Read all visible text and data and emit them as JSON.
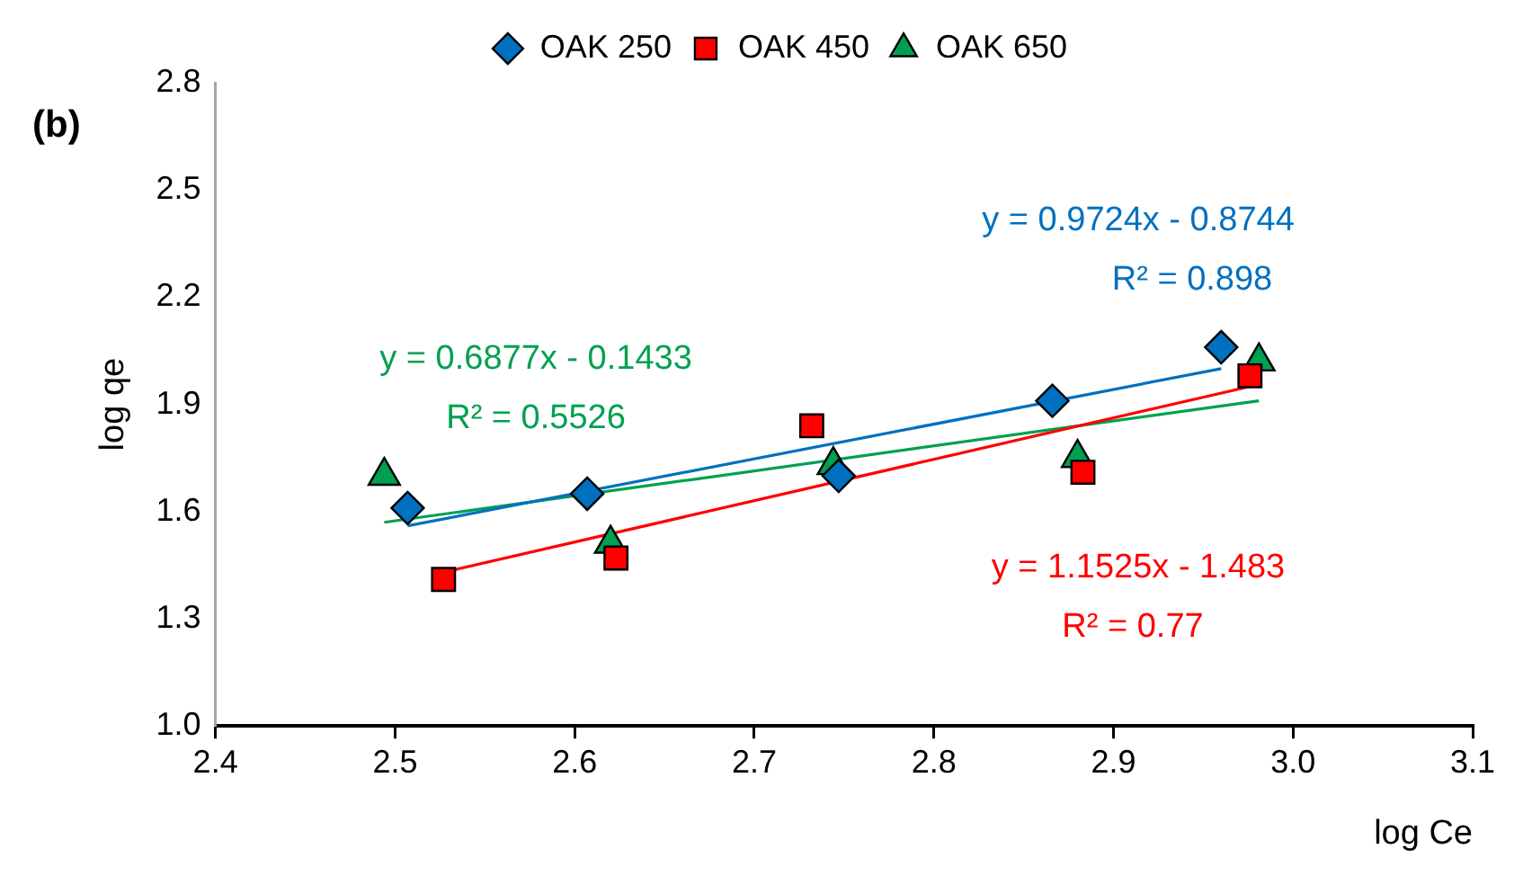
{
  "chart_data": {
    "type": "scatter",
    "title": "(b)",
    "xlabel": "log Ce",
    "ylabel": "log qe",
    "xlim": [
      2.4,
      3.1
    ],
    "xticks": [
      {
        "value": 2.4,
        "label": "2.4"
      },
      {
        "value": 2.5,
        "label": "2.5"
      },
      {
        "value": 2.6,
        "label": "2.6"
      },
      {
        "value": 2.7,
        "label": "2.7"
      },
      {
        "value": 2.8,
        "label": "2.8"
      },
      {
        "value": 2.9,
        "label": "2.9"
      },
      {
        "value": 3.0,
        "label": "3.0"
      },
      {
        "value": 3.1,
        "label": "3.1"
      }
    ],
    "ylim": [
      1.0,
      2.8
    ],
    "yticks": [
      {
        "value": 1.0,
        "label": "1.0"
      },
      {
        "value": 1.3,
        "label": "1.3"
      },
      {
        "value": 1.6,
        "label": "1.6"
      },
      {
        "value": 1.9,
        "label": "1.9"
      },
      {
        "value": 2.2,
        "label": "2.2"
      },
      {
        "value": 2.5,
        "label": "2.5"
      },
      {
        "value": 2.8,
        "label": "2.8"
      }
    ],
    "grid": false,
    "legend": "top",
    "series": [
      {
        "name": "OAK 250",
        "type": "scatter",
        "marker": "diamond",
        "color": "#0070c0",
        "x": [
          2.507,
          2.607,
          2.747,
          2.866,
          2.96
        ],
        "values": [
          1.61,
          1.65,
          1.7,
          1.91,
          2.06
        ]
      },
      {
        "name": "OAK 450",
        "type": "scatter",
        "marker": "square",
        "color": "#ff0000",
        "x": [
          2.527,
          2.623,
          2.732,
          2.883,
          2.976
        ],
        "values": [
          1.41,
          1.47,
          1.84,
          1.71,
          1.98
        ]
      },
      {
        "name": "OAK 650",
        "type": "scatter",
        "marker": "triangle",
        "color": "#00a050",
        "x": [
          2.494,
          2.62,
          2.744,
          2.88,
          2.981
        ],
        "values": [
          1.7,
          1.51,
          1.73,
          1.75,
          2.02
        ]
      },
      {
        "type": "line",
        "marker": "none",
        "color": "#0070c0",
        "x": [
          2.507,
          2.96
        ],
        "values": [
          1.56,
          2.0
        ]
      },
      {
        "type": "line",
        "marker": "none",
        "color": "#ff0000",
        "x": [
          2.527,
          2.976
        ],
        "values": [
          1.43,
          1.95
        ]
      },
      {
        "type": "line",
        "marker": "none",
        "color": "#00a050",
        "x": [
          2.494,
          2.981
        ],
        "values": [
          1.57,
          1.91
        ]
      }
    ],
    "annotations": [
      "y = 0.9724x - 0.8744",
      "R² = 0.898",
      "y = 1.1525x - 1.483",
      "R² = 0.77",
      "y = 0.6877x - 0.1433",
      "R² = 0.5526"
    ]
  }
}
